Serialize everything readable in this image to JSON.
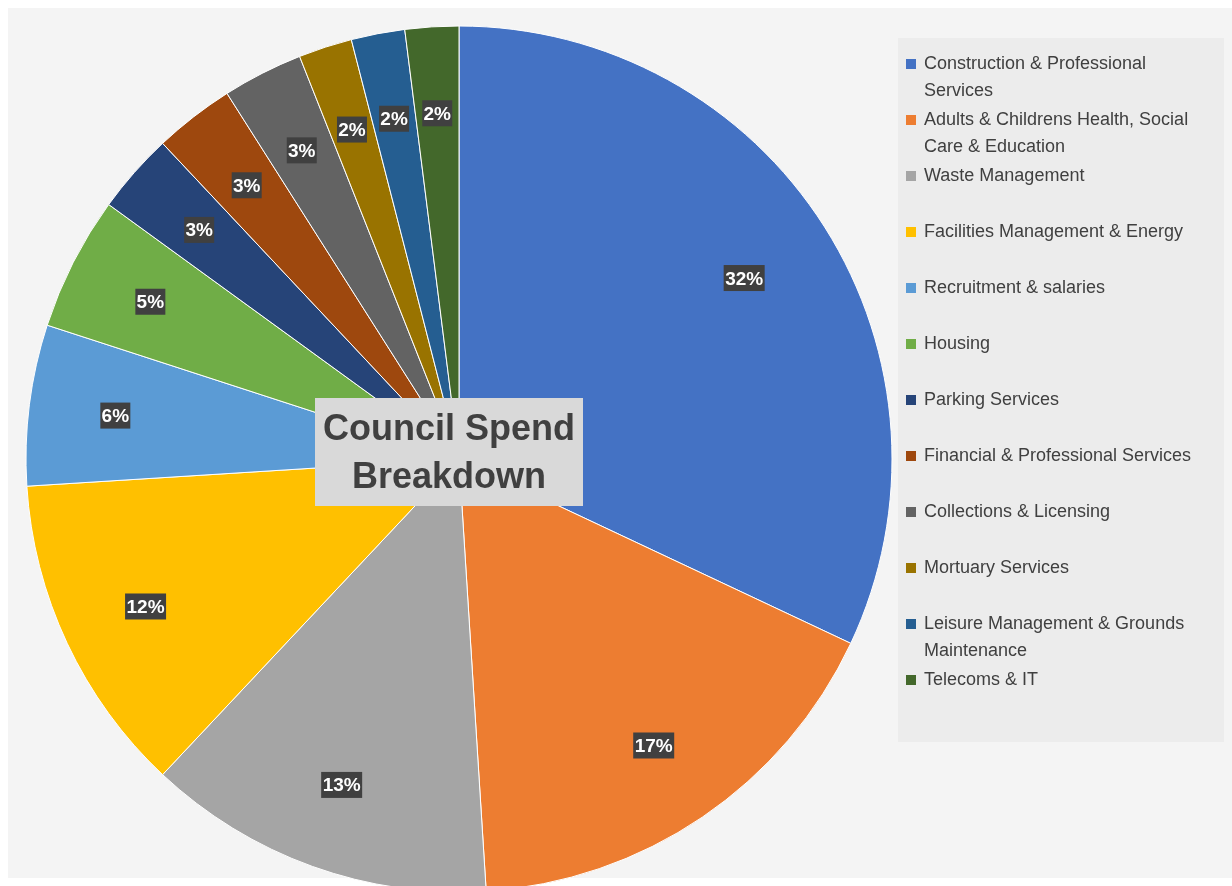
{
  "chart_data": {
    "type": "pie",
    "title": "Council Spend Breakdown",
    "categories": [
      "Construction & Professional Services",
      "Adults & Childrens Health, Social Care & Education",
      "Waste Management",
      "Facilities Management & Energy",
      "Recruitment & salaries",
      "Housing",
      "Parking Services",
      "Financial & Professional Services",
      "Collections & Licensing",
      "Mortuary Services",
      "Leisure Management & Grounds Maintenance",
      "Telecoms & IT"
    ],
    "values": [
      32,
      17,
      13,
      12,
      6,
      5,
      3,
      3,
      3,
      2,
      2,
      2
    ],
    "value_labels": [
      "32%",
      "17%",
      "13%",
      "12%",
      "6%",
      "5%",
      "3%",
      "3%",
      "3%",
      "2%",
      "2%",
      "2%"
    ],
    "colors": [
      "#4472c4",
      "#ed7d31",
      "#a5a5a5",
      "#ffc000",
      "#5b9bd5",
      "#70ad47",
      "#264478",
      "#9e480e",
      "#636363",
      "#997300",
      "#255e91",
      "#43682b"
    ],
    "legend": "right"
  }
}
